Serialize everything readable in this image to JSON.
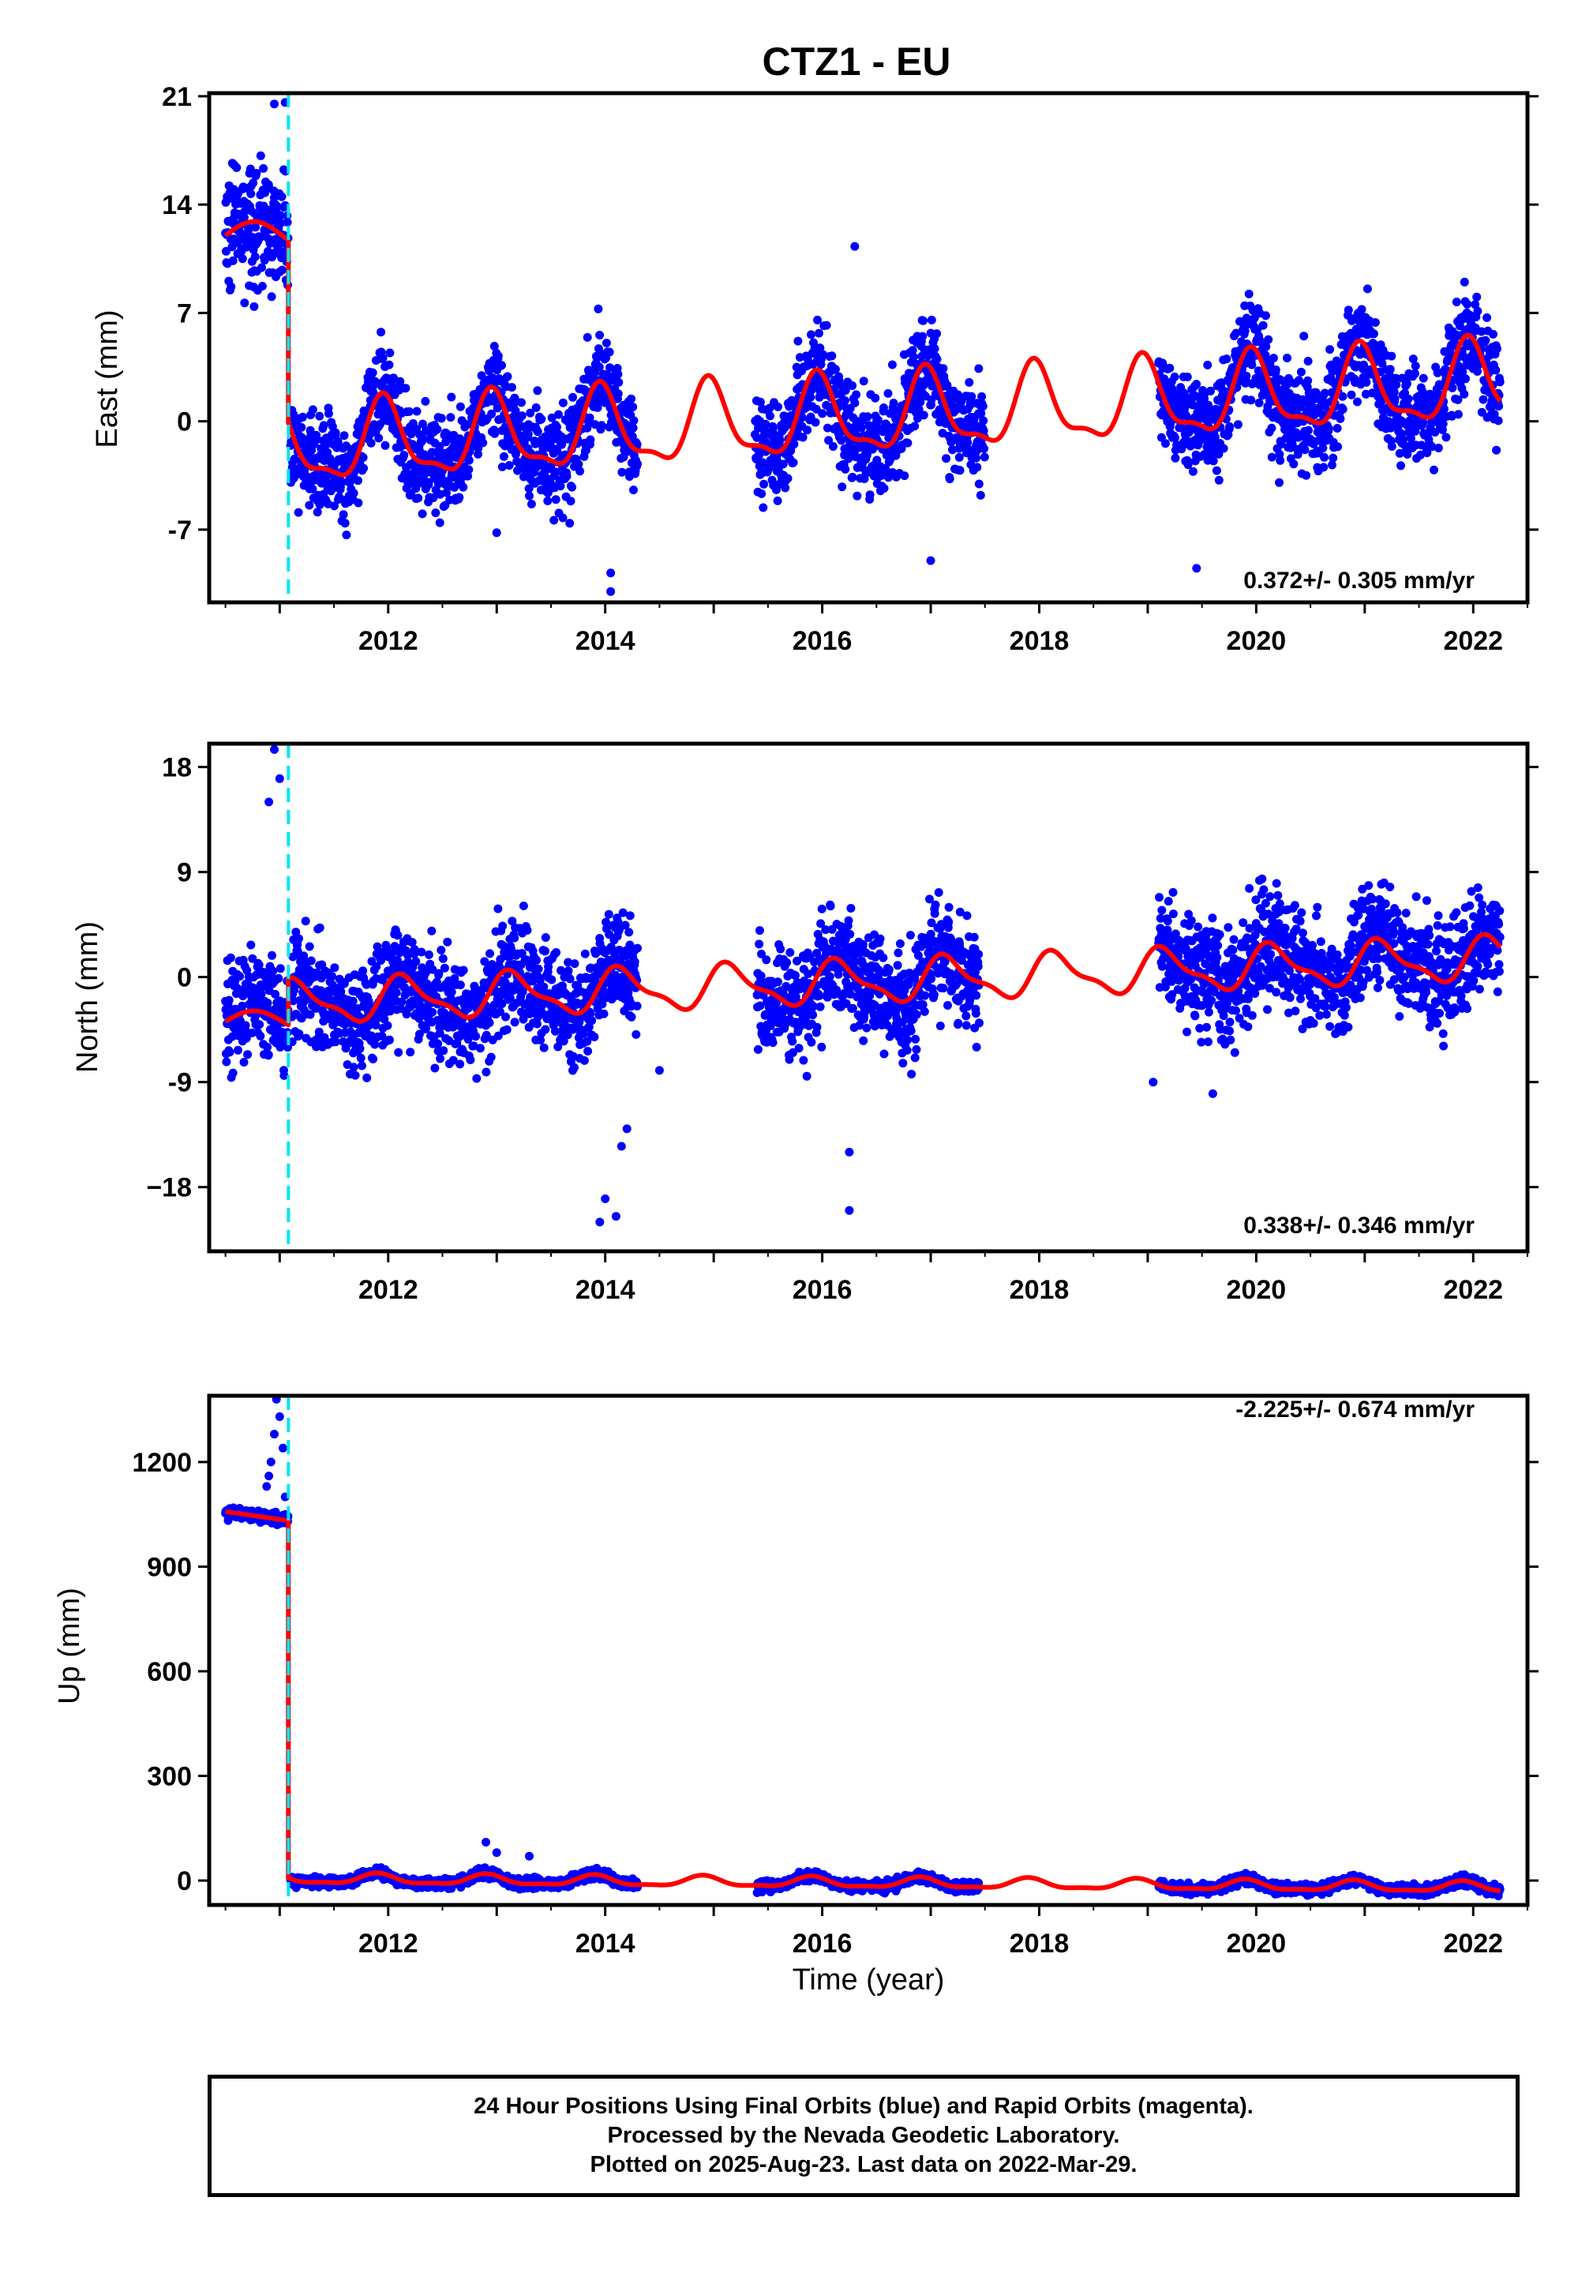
{
  "figure": {
    "title": "CTZ1 - EU",
    "xlabel": "Time (year)",
    "caption": [
      "24 Hour Positions Using Final Orbits (blue) and Rapid Orbits (magenta).",
      "Processed by the Nevada Geodetic Laboratory.",
      "Plotted on 2025-Aug-23. Last data on 2022-Mar-29."
    ],
    "colors": {
      "data": "#0000ff",
      "model": "#ff0000",
      "offset_line": "#00e5ee",
      "frame": "#000000"
    }
  },
  "chart_data": [
    {
      "type": "scatter",
      "panel": "east",
      "ylabel": "East (mm)",
      "rate_label": "0.372+/- 0.305 mm/yr",
      "rate_position": "bottom-right",
      "xlim": [
        2010.35,
        2022.5
      ],
      "ylim": [
        -11.7,
        21.2
      ],
      "yticks": [
        -7,
        0,
        7,
        14,
        21
      ],
      "ytick_labels": [
        "-7",
        "0",
        "7",
        "14",
        "21"
      ],
      "xticks": [
        2012,
        2014,
        2016,
        2018,
        2020,
        2022
      ],
      "xtick_labels": [
        "2012",
        "2014",
        "2016",
        "2018",
        "2020",
        "2022"
      ],
      "offset_epoch": 2011.08,
      "model": {
        "pre_offset": {
          "x_range": [
            2010.5,
            2011.08
          ],
          "level": 12.0
        },
        "post_offset": {
          "start": 2011.08,
          "level": -1.7,
          "slope": 0.372,
          "amplitude": 2.4,
          "phase": 1.8
        }
      },
      "data_segments": [
        {
          "x_range": [
            2010.5,
            2011.08
          ],
          "level": 12.0,
          "slope": 0.372,
          "amplitude": 1.0,
          "scatter": 2.0
        },
        {
          "x_range": [
            2011.1,
            2014.3
          ],
          "level": -1.7,
          "slope": 0.372,
          "amplitude": 2.4,
          "scatter": 1.6
        },
        {
          "x_range": [
            2015.38,
            2017.5
          ],
          "level": -1.7,
          "slope": 0.372,
          "amplitude": 2.4,
          "scatter": 1.6
        },
        {
          "x_range": [
            2019.1,
            2022.25
          ],
          "level": -1.7,
          "slope": 0.372,
          "amplitude": 2.4,
          "scatter": 1.6
        }
      ],
      "outliers": [
        [
          2014.05,
          -9.8
        ],
        [
          2014.05,
          -11.0
        ],
        [
          2016.3,
          11.3
        ],
        [
          2019.45,
          -9.5
        ],
        [
          2010.95,
          20.5
        ],
        [
          2011.05,
          20.6
        ],
        [
          2013.0,
          -7.2
        ],
        [
          2017.0,
          -9.0
        ]
      ]
    },
    {
      "type": "scatter",
      "panel": "north",
      "ylabel": "North (mm)",
      "rate_label": "0.338+/- 0.346 mm/yr",
      "rate_position": "bottom-right",
      "xlim": [
        2010.35,
        2022.5
      ],
      "ylim": [
        -23.5,
        20.0
      ],
      "yticks": [
        -18,
        -9,
        0,
        9,
        18
      ],
      "ytick_labels": [
        "−18",
        "-9",
        "0",
        "9",
        "18"
      ],
      "xticks": [
        2012,
        2014,
        2016,
        2018,
        2020,
        2022
      ],
      "xtick_labels": [
        "2012",
        "2014",
        "2016",
        "2018",
        "2020",
        "2022"
      ],
      "offset_epoch": 2011.08,
      "model": {
        "pre_offset": {
          "x_range": [
            2010.5,
            2011.08
          ],
          "level": -3.8
        },
        "post_offset": {
          "start": 2011.08,
          "level": -2.2,
          "slope": 0.338,
          "amplitude": 1.7,
          "phase": 0.6
        }
      },
      "data_segments": [
        {
          "x_range": [
            2010.5,
            2011.08
          ],
          "level": -3.8,
          "slope": 0.338,
          "amplitude": 1.5,
          "scatter": 2.4
        },
        {
          "x_range": [
            2011.1,
            2014.3
          ],
          "level": -2.2,
          "slope": 0.338,
          "amplitude": 1.7,
          "scatter": 2.3
        },
        {
          "x_range": [
            2015.4,
            2017.45
          ],
          "level": -2.2,
          "slope": 0.338,
          "amplitude": 1.7,
          "scatter": 2.3
        },
        {
          "x_range": [
            2019.1,
            2022.25
          ],
          "level": -2.2,
          "slope": 0.338,
          "amplitude": 1.7,
          "scatter": 2.3
        }
      ],
      "outliers": [
        [
          2010.95,
          19.5
        ],
        [
          2011.0,
          17.0
        ],
        [
          2010.9,
          15.0
        ],
        [
          2014.0,
          -19.0
        ],
        [
          2013.95,
          -21.0
        ],
        [
          2014.1,
          -20.5
        ],
        [
          2014.2,
          -13.0
        ],
        [
          2014.15,
          -14.5
        ],
        [
          2016.25,
          -20.0
        ],
        [
          2016.25,
          -15.0
        ],
        [
          2014.5,
          -8.0
        ],
        [
          2019.6,
          -10.0
        ],
        [
          2019.05,
          -9.0
        ]
      ]
    },
    {
      "type": "scatter",
      "panel": "up",
      "ylabel": "Up (mm)",
      "rate_label": "-2.225+/- 0.674 mm/yr",
      "rate_position": "top-right",
      "xlim": [
        2010.35,
        2022.5
      ],
      "ylim": [
        -70,
        1390
      ],
      "yticks": [
        0,
        300,
        600,
        900,
        1200
      ],
      "ytick_labels": [
        "0",
        "300",
        "600",
        "900",
        "1200"
      ],
      "xticks": [
        2012,
        2014,
        2016,
        2018,
        2020,
        2022
      ],
      "xtick_labels": [
        "2012",
        "2014",
        "2016",
        "2018",
        "2020",
        "2022"
      ],
      "offset_epoch": 2011.08,
      "model": {
        "pre_offset": {
          "x_range": [
            2010.5,
            2011.08
          ],
          "start_value": 1058,
          "end_value": 1032
        },
        "post_offset": {
          "start": 2011.08,
          "level": 5.0,
          "slope": -2.225,
          "amplitude": 14,
          "phase": 2.2
        }
      },
      "data_segments": [
        {
          "x_range": [
            2010.5,
            2011.08
          ],
          "start_value": 1058,
          "end_value": 1032,
          "scatter": 8
        },
        {
          "x_range": [
            2011.1,
            2014.3
          ],
          "level": 5.0,
          "slope": -2.225,
          "amplitude": 14,
          "scatter": 7
        },
        {
          "x_range": [
            2015.4,
            2017.45
          ],
          "level": 5.0,
          "slope": -2.225,
          "amplitude": 14,
          "scatter": 7
        },
        {
          "x_range": [
            2019.1,
            2022.25
          ],
          "level": 5.0,
          "slope": -2.225,
          "amplitude": 14,
          "scatter": 7
        }
      ],
      "outliers": [
        [
          2010.88,
          1130
        ],
        [
          2010.92,
          1200
        ],
        [
          2010.95,
          1280
        ],
        [
          2011.0,
          1330
        ],
        [
          2010.97,
          1380
        ],
        [
          2011.03,
          1240
        ],
        [
          2010.9,
          1160
        ],
        [
          2011.05,
          1100
        ],
        [
          2012.9,
          110
        ],
        [
          2013.0,
          80
        ],
        [
          2013.3,
          70
        ]
      ]
    }
  ]
}
